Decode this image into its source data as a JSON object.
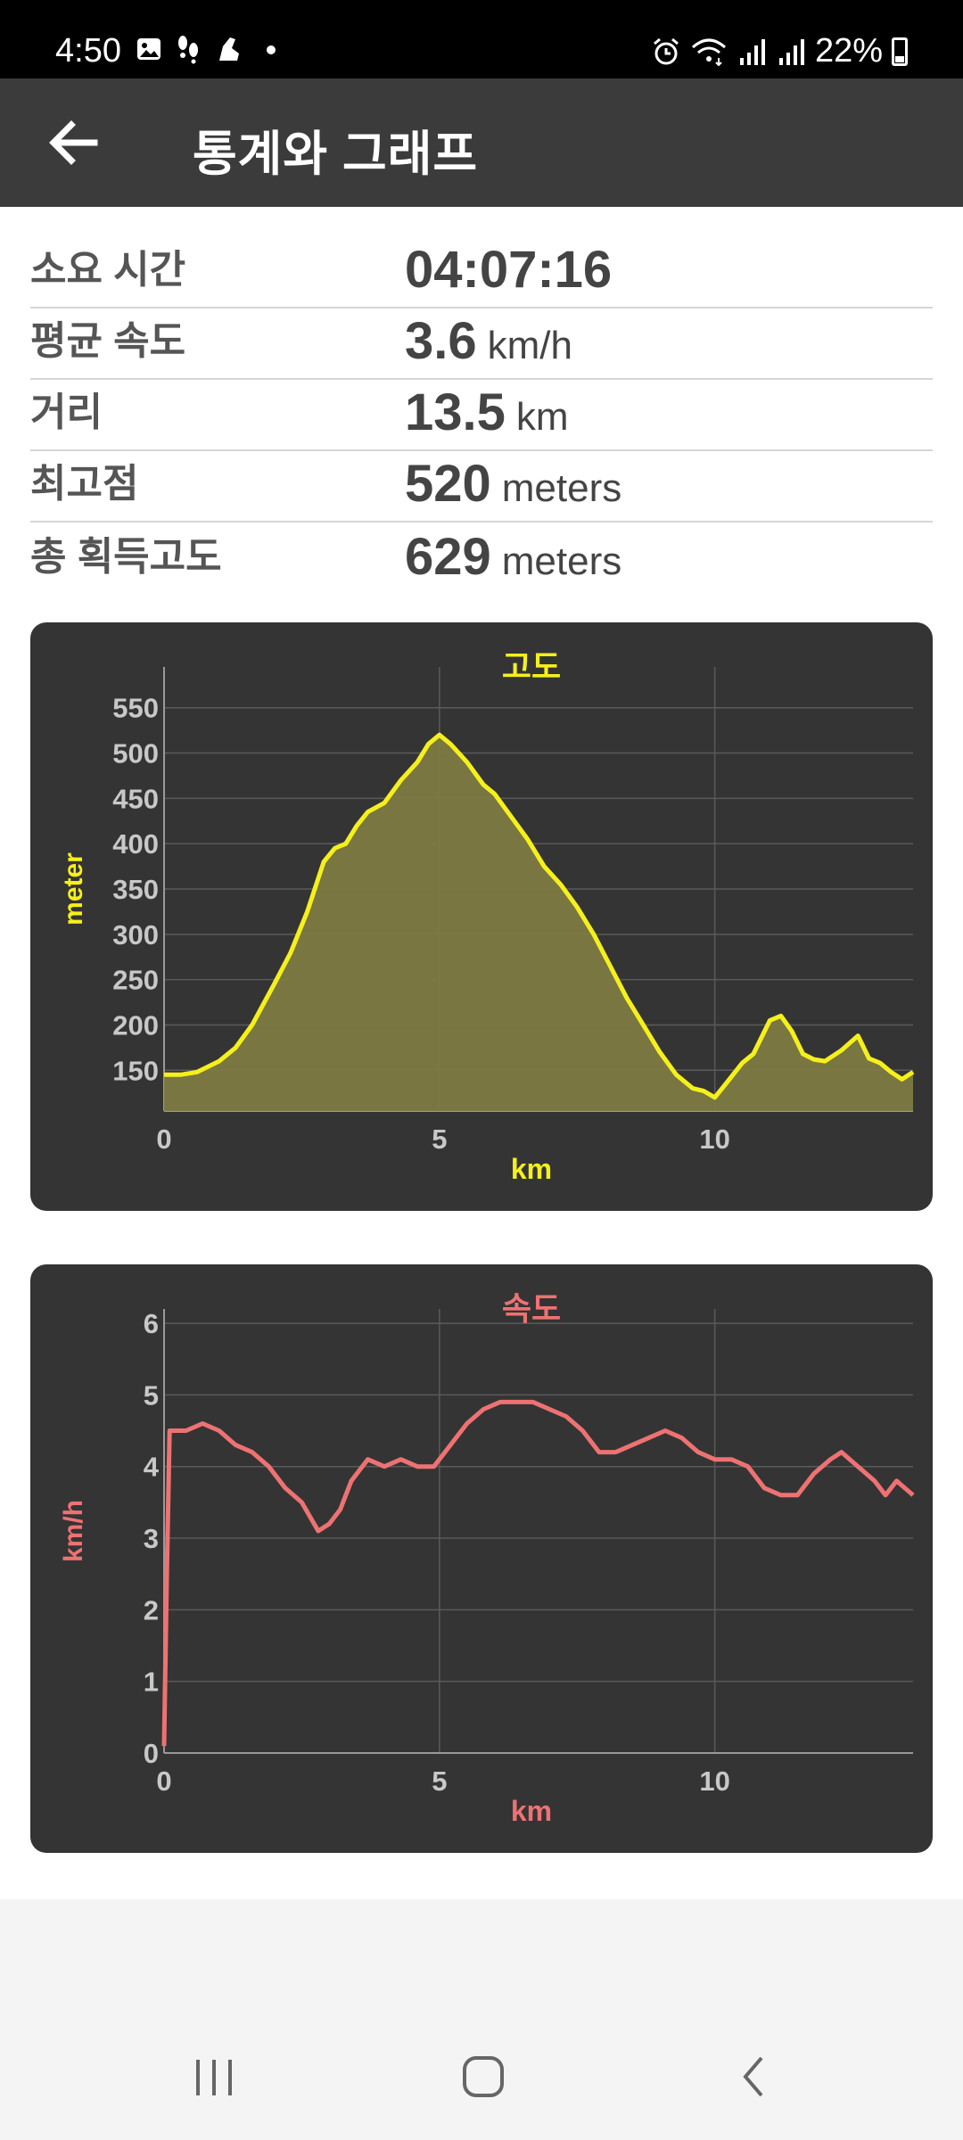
{
  "status_bar": {
    "time": "4:50",
    "left_icons": [
      "gallery-icon",
      "footprints-icon",
      "shoe-icon",
      "dot-icon"
    ],
    "right_icons": [
      "alarm-icon",
      "wifi-icon",
      "signal-icon",
      "signal-icon"
    ],
    "battery": "22%"
  },
  "app_bar": {
    "title": "통계와 그래프",
    "back_icon": "arrow-left-icon"
  },
  "stats": [
    {
      "label": "소요 시간",
      "value": "04:07:16",
      "unit": ""
    },
    {
      "label": "평균 속도",
      "value": "3.6",
      "unit": "km/h"
    },
    {
      "label": "거리",
      "value": "13.5",
      "unit": "km"
    },
    {
      "label": "최고점",
      "value": "520",
      "unit": "meters"
    },
    {
      "label": "총 획득고도",
      "value": "629",
      "unit": "meters"
    }
  ],
  "chart_data": [
    {
      "type": "area",
      "title": "고도",
      "xlabel": "km",
      "ylabel": "meter",
      "color": "#f5f01a",
      "fill": "#7d7a42",
      "xlim": [
        0,
        13.6
      ],
      "ylim": [
        105,
        595
      ],
      "xticks": [
        "0",
        "5",
        "10"
      ],
      "yticks": [
        "150",
        "200",
        "250",
        "300",
        "350",
        "400",
        "450",
        "500",
        "550"
      ],
      "x": [
        0,
        0.3,
        0.6,
        1.0,
        1.3,
        1.6,
        2.0,
        2.3,
        2.6,
        2.9,
        3.1,
        3.3,
        3.5,
        3.7,
        4.0,
        4.3,
        4.6,
        4.8,
        5.0,
        5.2,
        5.5,
        5.8,
        6.0,
        6.3,
        6.6,
        6.9,
        7.2,
        7.5,
        7.8,
        8.1,
        8.4,
        8.7,
        9.0,
        9.3,
        9.6,
        9.8,
        10.0,
        10.2,
        10.5,
        10.7,
        11.0,
        11.2,
        11.4,
        11.6,
        11.8,
        12.0,
        12.3,
        12.6,
        12.8,
        13.0,
        13.2,
        13.4,
        13.6
      ],
      "y": [
        145,
        145,
        148,
        160,
        175,
        200,
        245,
        280,
        325,
        380,
        395,
        400,
        420,
        435,
        445,
        470,
        490,
        510,
        520,
        510,
        490,
        465,
        455,
        430,
        405,
        375,
        355,
        330,
        300,
        265,
        230,
        200,
        170,
        145,
        130,
        127,
        120,
        135,
        158,
        168,
        205,
        210,
        193,
        168,
        162,
        160,
        172,
        188,
        163,
        158,
        148,
        140,
        148
      ]
    },
    {
      "type": "line",
      "title": "속도",
      "xlabel": "km",
      "ylabel": "km/h",
      "color": "#ee7272",
      "xlim": [
        0,
        13.6
      ],
      "ylim": [
        0,
        6.2
      ],
      "xticks": [
        "0",
        "5",
        "10"
      ],
      "yticks": [
        "0",
        "1",
        "2",
        "3",
        "4",
        "5",
        "6"
      ],
      "x": [
        0,
        0.05,
        0.1,
        0.2,
        0.4,
        0.7,
        1.0,
        1.3,
        1.6,
        1.9,
        2.2,
        2.5,
        2.8,
        3.0,
        3.2,
        3.4,
        3.7,
        4.0,
        4.3,
        4.6,
        4.9,
        5.2,
        5.5,
        5.8,
        6.1,
        6.4,
        6.7,
        7.0,
        7.3,
        7.6,
        7.9,
        8.2,
        8.5,
        8.8,
        9.1,
        9.4,
        9.7,
        10.0,
        10.3,
        10.6,
        10.9,
        11.2,
        11.5,
        11.8,
        12.1,
        12.3,
        12.6,
        12.9,
        13.1,
        13.3,
        13.6
      ],
      "y": [
        0.1,
        2.5,
        4.5,
        4.5,
        4.5,
        4.6,
        4.5,
        4.3,
        4.2,
        4.0,
        3.7,
        3.5,
        3.1,
        3.2,
        3.4,
        3.8,
        4.1,
        4.0,
        4.1,
        4.0,
        4.0,
        4.3,
        4.6,
        4.8,
        4.9,
        4.9,
        4.9,
        4.8,
        4.7,
        4.5,
        4.2,
        4.2,
        4.3,
        4.4,
        4.5,
        4.4,
        4.2,
        4.1,
        4.1,
        4.0,
        3.7,
        3.6,
        3.6,
        3.9,
        4.1,
        4.2,
        4.0,
        3.8,
        3.6,
        3.8,
        3.6
      ]
    }
  ],
  "nav_bar": {
    "buttons": [
      "recents-icon",
      "home-icon",
      "back-icon"
    ]
  }
}
